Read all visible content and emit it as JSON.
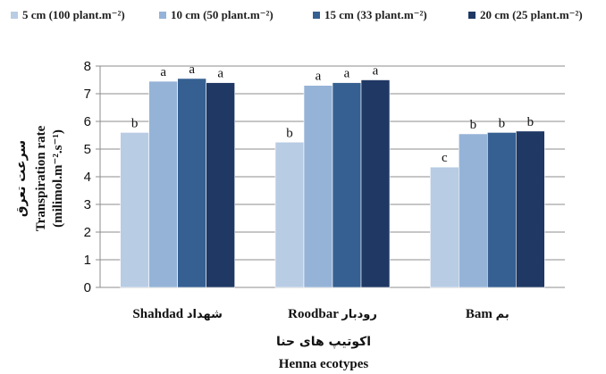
{
  "chart_data": {
    "type": "bar",
    "title": "",
    "categories": [
      {
        "en": "Shahdad",
        "fa": "شهداد"
      },
      {
        "en": "Roodbar",
        "fa": "رودبار"
      },
      {
        "en": "Bam",
        "fa": "بم"
      }
    ],
    "series": [
      {
        "name": "5 cm (100 plant.m⁻²)",
        "color": "#b8cce4",
        "values": [
          5.6,
          5.25,
          4.35
        ],
        "labels": [
          "b",
          "b",
          "c"
        ]
      },
      {
        "name": "10 cm (50 plant.m⁻²)",
        "color": "#95b3d7",
        "values": [
          7.45,
          7.3,
          5.55
        ],
        "labels": [
          "a",
          "a",
          "b"
        ]
      },
      {
        "name": "15 cm (33 plant.m⁻²)",
        "color": "#366092",
        "values": [
          7.55,
          7.4,
          5.6
        ],
        "labels": [
          "a",
          "a",
          "b"
        ]
      },
      {
        "name": "20 cm (25 plant.m⁻²)",
        "color": "#1f3864",
        "values": [
          7.4,
          7.5,
          5.65
        ],
        "labels": [
          "a",
          "a",
          "b"
        ]
      }
    ],
    "ylim": [
      0,
      8
    ],
    "yticks": [
      0,
      1,
      2,
      3,
      4,
      5,
      6,
      7,
      8
    ],
    "grid": true,
    "legend_position": "top",
    "ylabel": {
      "fa": "سرعت تعرق",
      "en_line1": "Transpiration rate",
      "en_line2": "(milimol.m⁻².s⁻¹)"
    },
    "xlabel": {
      "fa": "اکوتیپ های حنا",
      "en": "Henna ecotypes"
    }
  }
}
